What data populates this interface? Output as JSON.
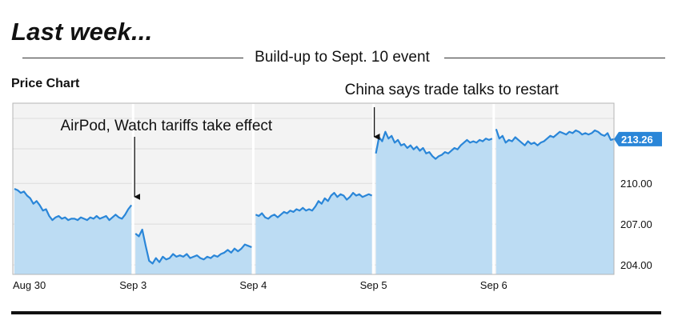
{
  "headline": "Last week...",
  "subtitle": "Build-up to Sept. 10 event",
  "panel_title": "Price Chart",
  "colors": {
    "line": "#2a86d8",
    "fill": "#bcdcf3",
    "plot_bg": "#f3f3f3",
    "frame": "#b5b5b5",
    "last_price_badge": "#2a86d8"
  },
  "chart_data": {
    "type": "area",
    "title": "Price Chart",
    "xlabel": "",
    "ylabel": "",
    "ylim": [
      203.3,
      215.9
    ],
    "x_tick_labels": [
      "Aug 30",
      "Sep 3",
      "Sep 4",
      "Sep 5",
      "Sep 6"
    ],
    "y_tick_labels": [
      "210.00",
      "207.00",
      "204.00"
    ],
    "y_ticks": [
      210,
      207,
      204
    ],
    "grid": true,
    "legend": "none",
    "last_price": "213.26",
    "sessions": [
      {
        "label": "Aug 30",
        "values": [
          209.6,
          209.5,
          209.3,
          209.4,
          209.1,
          208.9,
          208.5,
          208.7,
          208.4,
          208.0,
          208.1,
          207.6,
          207.3,
          207.5,
          207.6,
          207.4,
          207.5,
          207.3,
          207.4,
          207.4,
          207.3,
          207.5,
          207.4,
          207.3,
          207.5,
          207.4,
          207.6,
          207.4,
          207.5,
          207.6,
          207.3,
          207.5,
          207.7,
          207.5,
          207.4,
          207.7,
          208.1,
          208.4
        ]
      },
      {
        "label": "Sep 3",
        "values": [
          206.3,
          206.1,
          206.6,
          205.4,
          204.3,
          204.1,
          204.5,
          204.2,
          204.6,
          204.4,
          204.5,
          204.8,
          204.6,
          204.7,
          204.6,
          204.8,
          204.5,
          204.6,
          204.7,
          204.5,
          204.4,
          204.6,
          204.5,
          204.7,
          204.6,
          204.8,
          204.9,
          205.1,
          204.9,
          205.2,
          205.0,
          205.2,
          205.5,
          205.4,
          205.3
        ]
      },
      {
        "label": "Sep 4",
        "values": [
          207.7,
          207.6,
          207.8,
          207.5,
          207.4,
          207.6,
          207.7,
          207.5,
          207.7,
          207.9,
          207.8,
          208.0,
          207.9,
          208.1,
          208.0,
          208.2,
          208.0,
          208.1,
          208.0,
          208.3,
          208.7,
          208.5,
          208.9,
          208.7,
          209.1,
          209.3,
          209.0,
          209.2,
          209.1,
          208.8,
          209.0,
          209.3,
          209.1,
          209.2,
          209.0,
          209.1,
          209.2,
          209.1
        ]
      },
      {
        "label": "Sep 5",
        "values": [
          212.2,
          213.4,
          213.1,
          213.8,
          213.3,
          213.5,
          213.0,
          213.2,
          212.8,
          212.9,
          212.6,
          212.8,
          212.5,
          212.7,
          212.4,
          212.6,
          212.2,
          212.3,
          212.0,
          211.8,
          212.0,
          212.1,
          212.3,
          212.2,
          212.4,
          212.6,
          212.5,
          212.8,
          213.0,
          213.2,
          213.0,
          213.1,
          213.0,
          213.2,
          213.1,
          213.3,
          213.2,
          213.3
        ]
      },
      {
        "label": "Sep 6",
        "values": [
          214.0,
          213.3,
          213.5,
          213.0,
          213.2,
          213.1,
          213.4,
          213.2,
          213.0,
          212.8,
          213.1,
          212.9,
          213.0,
          212.8,
          213.0,
          213.1,
          213.3,
          213.5,
          213.4,
          213.6,
          213.8,
          213.7,
          213.6,
          213.8,
          213.7,
          213.9,
          213.8,
          213.6,
          213.7,
          213.6,
          213.7,
          213.9,
          213.8,
          213.6,
          213.5,
          213.7,
          213.2,
          213.26
        ]
      }
    ],
    "annotations": [
      {
        "text": "AirPod, Watch tariffs take effect",
        "x_label": "Sep 3",
        "text_align": "end"
      },
      {
        "text": "China says trade talks to restart",
        "x_label": "Sep 5",
        "text_align": "start"
      }
    ]
  }
}
